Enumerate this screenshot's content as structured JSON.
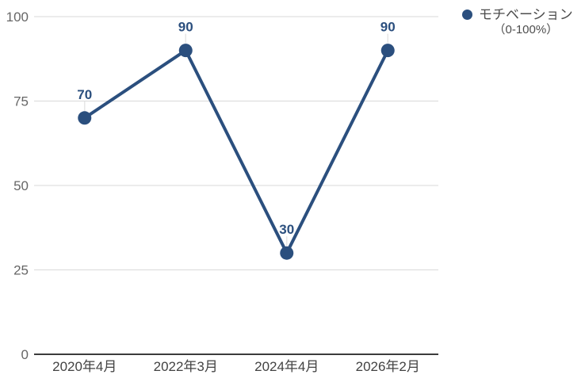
{
  "chart_data": {
    "type": "line",
    "title": "",
    "xlabel": "",
    "ylabel": "",
    "categories": [
      "2020年4月",
      "2022年3月",
      "2024年4月",
      "2026年2月"
    ],
    "series": [
      {
        "name": "モチベーション（0-100%）",
        "values": [
          70,
          90,
          30,
          90
        ]
      }
    ],
    "data_labels": [
      "70",
      "90",
      "30",
      "90"
    ],
    "yticks": [
      "0",
      "25",
      "50",
      "75",
      "100"
    ],
    "ytick_values": [
      0,
      25,
      50,
      75,
      100
    ],
    "ylim": [
      0,
      100
    ],
    "grid": true,
    "legend_position": "right",
    "legend": {
      "lines": [
        "モチベーション",
        "（0-100%）"
      ]
    },
    "colors": {
      "series": "#2b4f7e",
      "data_label": "#2b4f7e",
      "gridline": "#d9d9d9",
      "x_axis_line": "#3c3c3c",
      "y_tick_label": "#666666",
      "x_tick_label": "#424242",
      "legend_text": "#4d4d4d",
      "leader_line": "#e6e6e6",
      "background": "#ffffff"
    }
  }
}
